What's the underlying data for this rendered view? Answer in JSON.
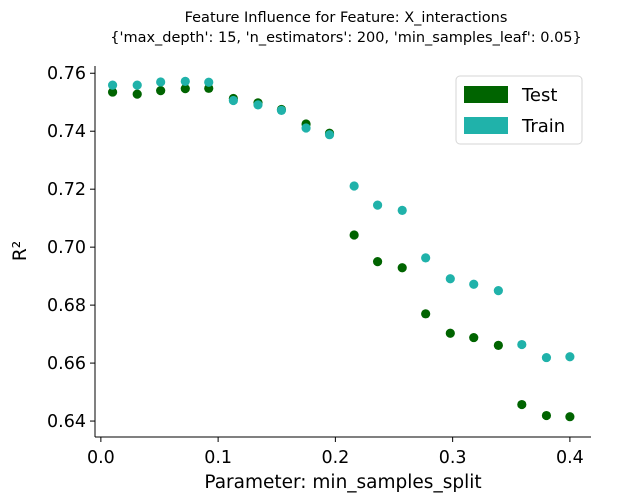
{
  "chart_data": {
    "type": "scatter",
    "title": "Feature Influence for Feature: X_interactions",
    "subtitle": "{'max_depth': 15, 'n_estimators': 200, 'min_samples_leaf': 0.05}",
    "xlabel": "Parameter: min_samples_split",
    "ylabel": "R²",
    "xlim": [
      -0.005,
      0.418
    ],
    "ylim": [
      0.6345,
      0.7625
    ],
    "xticks": [
      "0.0",
      "0.1",
      "0.2",
      "0.3",
      "0.4"
    ],
    "xtick_values": [
      0.0,
      0.1,
      0.2,
      0.3,
      0.4
    ],
    "yticks": [
      "0.64",
      "0.66",
      "0.68",
      "0.70",
      "0.72",
      "0.74",
      "0.76"
    ],
    "ytick_values": [
      0.64,
      0.66,
      0.68,
      0.7,
      0.72,
      0.74,
      0.76
    ],
    "grid": false,
    "legend_position": "top-right",
    "series": [
      {
        "name": "Test",
        "color": "#006400",
        "x": [
          0.01,
          0.031,
          0.051,
          0.072,
          0.092,
          0.113,
          0.134,
          0.154,
          0.175,
          0.195,
          0.216,
          0.236,
          0.257,
          0.277,
          0.298,
          0.318,
          0.339,
          0.359,
          0.38,
          0.4
        ],
        "y": [
          0.7535,
          0.7528,
          0.754,
          0.7547,
          0.7548,
          0.7513,
          0.7498,
          0.7475,
          0.7425,
          0.7393,
          0.7042,
          0.695,
          0.6929,
          0.677,
          0.6703,
          0.6688,
          0.6661,
          0.6457,
          0.6419,
          0.6415
        ]
      },
      {
        "name": "Train",
        "color": "#20B2AA",
        "x": [
          0.01,
          0.031,
          0.051,
          0.072,
          0.092,
          0.113,
          0.134,
          0.154,
          0.175,
          0.195,
          0.216,
          0.236,
          0.257,
          0.277,
          0.298,
          0.318,
          0.339,
          0.359,
          0.38,
          0.4
        ],
        "y": [
          0.7559,
          0.7559,
          0.757,
          0.7572,
          0.7569,
          0.7506,
          0.7491,
          0.7472,
          0.7411,
          0.7388,
          0.7211,
          0.7145,
          0.7127,
          0.6963,
          0.6891,
          0.6872,
          0.685,
          0.6664,
          0.6619,
          0.6622
        ]
      }
    ]
  }
}
